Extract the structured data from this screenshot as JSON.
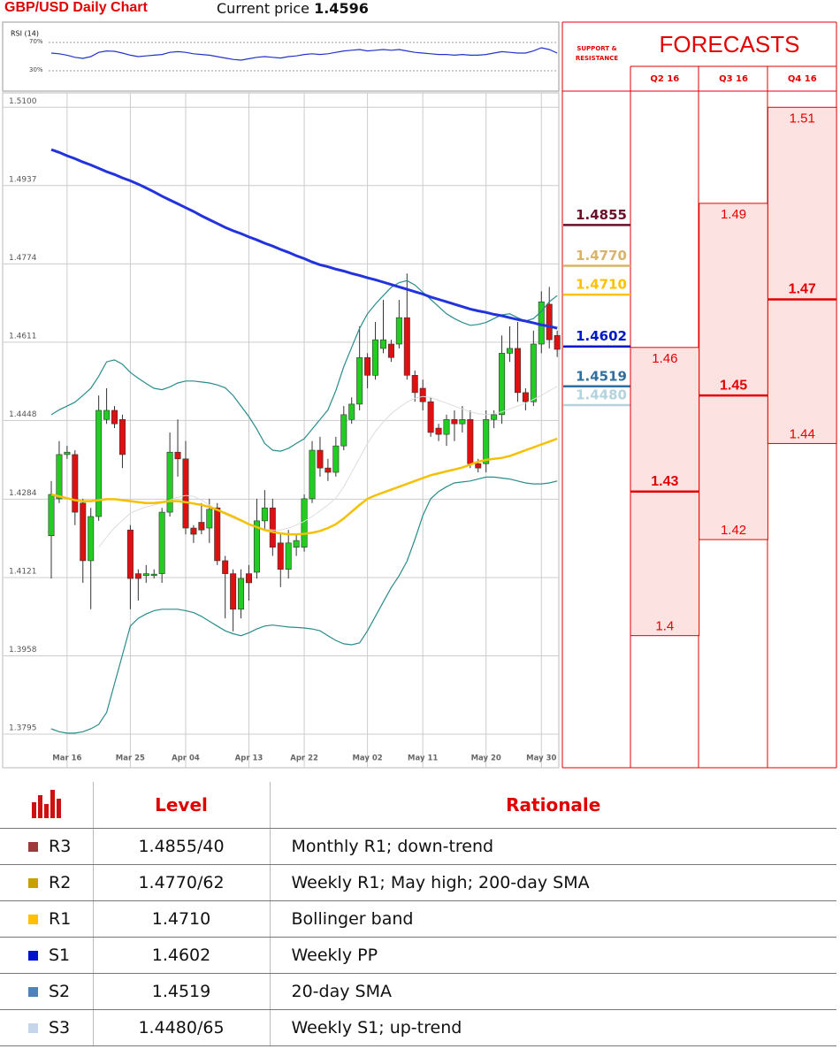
{
  "header": {
    "title": "GBP/USD Daily Chart",
    "price_label": "Current price",
    "price": 1.4596
  },
  "chart_data": [
    {
      "type": "candlestick",
      "categories": [
        null,
        null,
        "Mar 16",
        null,
        null,
        null,
        null,
        null,
        null,
        null,
        "Mar 25",
        null,
        null,
        null,
        null,
        null,
        null,
        "Apr 04",
        null,
        null,
        null,
        null,
        null,
        null,
        null,
        "Apr 13",
        null,
        null,
        null,
        null,
        null,
        null,
        "Apr 22",
        null,
        null,
        null,
        null,
        null,
        null,
        null,
        "May 02",
        null,
        null,
        null,
        null,
        null,
        null,
        "May 11",
        null,
        null,
        null,
        null,
        null,
        null,
        null,
        "May 20",
        null,
        null,
        null,
        null,
        null,
        null,
        "May 30",
        null,
        null
      ],
      "open": [
        1.4208,
        1.4285,
        1.4377,
        1.4377,
        1.4276,
        1.4156,
        1.4248,
        1.445,
        1.4469,
        1.445,
        1.422,
        1.4129,
        1.4125,
        1.4125,
        1.4129,
        1.4257,
        1.4382,
        1.4368,
        1.4224,
        1.4236,
        1.4224,
        1.4266,
        1.4156,
        1.4129,
        1.4055,
        1.4129,
        1.4132,
        1.4239,
        1.4266,
        1.4193,
        1.4138,
        1.4184,
        1.4184,
        1.4285,
        1.4386,
        1.4349,
        1.434,
        1.4395,
        1.445,
        1.4482,
        1.4579,
        1.4542,
        1.4598,
        1.4607,
        1.4607,
        1.4662,
        1.4542,
        1.4515,
        1.4487,
        1.4432,
        1.4419,
        1.445,
        1.4441,
        1.445,
        1.4358,
        1.4358,
        1.445,
        1.446,
        1.4588,
        1.4598,
        1.4506,
        1.4487,
        1.4607,
        1.469,
        1.4625
      ],
      "high": [
        1.4322,
        1.4405,
        1.4395,
        1.4386,
        1.4285,
        1.4266,
        1.45,
        1.4515,
        1.4478,
        1.446,
        1.423,
        1.4138,
        1.4147,
        1.4138,
        1.4266,
        1.4423,
        1.445,
        1.4405,
        1.423,
        1.4276,
        1.4285,
        1.4276,
        1.4166,
        1.4138,
        1.4138,
        1.4147,
        1.4285,
        1.4303,
        1.4285,
        1.4211,
        1.422,
        1.4211,
        1.4294,
        1.4405,
        1.4414,
        1.4368,
        1.4414,
        1.4478,
        1.4496,
        1.4644,
        1.4588,
        1.4653,
        1.4699,
        1.4616,
        1.4699,
        1.4754,
        1.4552,
        1.4533,
        1.4496,
        1.4441,
        1.446,
        1.4469,
        1.4478,
        1.4469,
        1.4368,
        1.4469,
        1.4469,
        1.4625,
        1.4644,
        1.4653,
        1.4515,
        1.4635,
        1.4717,
        1.4726,
        1.4635
      ],
      "low": [
        1.4119,
        1.4276,
        1.4368,
        1.423,
        1.411,
        1.4055,
        1.4239,
        1.4441,
        1.4432,
        1.4349,
        1.4055,
        1.4073,
        1.411,
        1.4119,
        1.411,
        1.4248,
        1.4331,
        1.4211,
        1.4193,
        1.4211,
        1.4193,
        1.4147,
        1.4036,
        1.4009,
        1.4036,
        1.4073,
        1.4119,
        1.422,
        1.4166,
        1.4101,
        1.4119,
        1.4166,
        1.4175,
        1.4276,
        1.4331,
        1.4322,
        1.4331,
        1.4386,
        1.4441,
        1.4469,
        1.4515,
        1.4533,
        1.4588,
        1.457,
        1.4598,
        1.4533,
        1.4487,
        1.4469,
        1.4414,
        1.4405,
        1.4395,
        1.4405,
        1.4423,
        1.4349,
        1.434,
        1.434,
        1.4432,
        1.4441,
        1.457,
        1.4487,
        1.4469,
        1.4478,
        1.4588,
        1.4598,
        1.458
      ],
      "close": [
        1.4294,
        1.4377,
        1.4382,
        1.4257,
        1.4156,
        1.4248,
        1.4469,
        1.4469,
        1.4441,
        1.4377,
        1.4119,
        1.4119,
        1.4129,
        1.4128,
        1.4257,
        1.4382,
        1.4368,
        1.4224,
        1.4211,
        1.422,
        1.4263,
        1.4156,
        1.4129,
        1.4055,
        1.4119,
        1.411,
        1.4239,
        1.4266,
        1.4184,
        1.4138,
        1.4193,
        1.4198,
        1.4285,
        1.4386,
        1.4349,
        1.434,
        1.4395,
        1.446,
        1.4482,
        1.4579,
        1.4542,
        1.4616,
        1.4616,
        1.4579,
        1.4662,
        1.4542,
        1.4506,
        1.4487,
        1.4423,
        1.4419,
        1.445,
        1.4441,
        1.445,
        1.4358,
        1.4349,
        1.445,
        1.446,
        1.4588,
        1.4598,
        1.4506,
        1.4487,
        1.4607,
        1.4695,
        1.4616,
        1.4596
      ],
      "up_color": "#22cc22",
      "down_color": "#dd1111",
      "lines": [
        {
          "color": "#dddddd",
          "width": 1,
          "values": [
            null,
            null,
            null,
            null,
            null,
            null,
            1.4184,
            1.4205,
            1.4225,
            1.424,
            1.4255,
            1.4262,
            1.4268,
            1.4272,
            1.4276,
            1.4282,
            1.4288,
            1.4292,
            1.429,
            1.4282,
            1.4272,
            1.4262,
            1.4252,
            1.4244,
            1.4238,
            1.4232,
            1.4226,
            1.4222,
            1.422,
            1.422,
            1.4224,
            1.423,
            1.4238,
            1.4248,
            1.426,
            1.4272,
            1.4286,
            1.431,
            1.434,
            1.437,
            1.44,
            1.4425,
            1.4445,
            1.4462,
            1.4475,
            1.4486,
            1.4494,
            1.4498,
            1.4496,
            1.449,
            1.4484,
            1.4478,
            1.4472,
            1.4466,
            1.4462,
            1.446,
            1.4462,
            1.4466,
            1.4472,
            1.4478,
            1.4484,
            1.4492,
            1.45,
            1.451,
            1.4519
          ]
        },
        {
          "color": "#2a8c8c",
          "width": 1.2,
          "values": [
            1.446,
            1.447,
            1.4478,
            1.4486,
            1.45,
            1.4515,
            1.454,
            1.457,
            1.4574,
            1.4565,
            1.4548,
            1.4536,
            1.4525,
            1.4515,
            1.4512,
            1.4518,
            1.4526,
            1.453,
            1.453,
            1.4528,
            1.4526,
            1.4522,
            1.4516,
            1.45,
            1.4478,
            1.4456,
            1.443,
            1.44,
            1.4386,
            1.4384,
            1.439,
            1.44,
            1.441,
            1.443,
            1.445,
            1.447,
            1.451,
            1.456,
            1.46,
            1.464,
            1.467,
            1.469,
            1.4708,
            1.4725,
            1.4735,
            1.4739,
            1.473,
            1.4715,
            1.47,
            1.4685,
            1.467,
            1.466,
            1.4652,
            1.4646,
            1.4648,
            1.4652,
            1.466,
            1.4668,
            1.467,
            1.4662,
            1.4655,
            1.466,
            1.4675,
            1.4695,
            1.4708
          ]
        },
        {
          "color": "#2a8c8c",
          "width": 1.2,
          "values": [
            1.3806,
            1.38,
            1.3797,
            1.3797,
            1.38,
            1.3806,
            1.3815,
            1.384,
            1.39,
            1.396,
            1.402,
            1.4036,
            1.4045,
            1.4052,
            1.4055,
            1.4055,
            1.4055,
            1.4052,
            1.4048,
            1.404,
            1.403,
            1.402,
            1.401,
            1.4004,
            1.4,
            1.4006,
            1.4014,
            1.402,
            1.4022,
            1.402,
            1.4018,
            1.4017,
            1.4016,
            1.4014,
            1.401,
            1.4,
            1.399,
            1.3983,
            1.3981,
            1.3985,
            1.401,
            1.404,
            1.407,
            1.41,
            1.4125,
            1.4155,
            1.42,
            1.425,
            1.4285,
            1.43,
            1.431,
            1.4318,
            1.432,
            1.4322,
            1.4326,
            1.433,
            1.433,
            1.4328,
            1.4326,
            1.4322,
            1.4318,
            1.4316,
            1.4316,
            1.4318,
            1.4322
          ]
        },
        {
          "color": "#f5c000",
          "width": 2.5,
          "values": [
            1.4294,
            1.429,
            1.4286,
            1.4282,
            1.428,
            1.428,
            1.4282,
            1.4284,
            1.4284,
            1.4282,
            1.428,
            1.4278,
            1.4276,
            1.4276,
            1.4278,
            1.428,
            1.428,
            1.4278,
            1.4275,
            1.4272,
            1.4268,
            1.4262,
            1.4255,
            1.4248,
            1.424,
            1.4232,
            1.4226,
            1.422,
            1.4216,
            1.4213,
            1.4211,
            1.4211,
            1.4212,
            1.4214,
            1.4218,
            1.4224,
            1.4232,
            1.4244,
            1.4258,
            1.4272,
            1.4285,
            1.4292,
            1.4298,
            1.4304,
            1.431,
            1.4316,
            1.4322,
            1.4328,
            1.4334,
            1.4338,
            1.4342,
            1.4346,
            1.435,
            1.4356,
            1.4362,
            1.4366,
            1.4368,
            1.437,
            1.4374,
            1.438,
            1.4386,
            1.4392,
            1.4398,
            1.4404,
            1.441
          ]
        },
        {
          "color": "#2233dd",
          "width": 3,
          "values": [
            1.5012,
            1.5006,
            1.4999,
            1.4993,
            1.4986,
            1.498,
            1.4973,
            1.4966,
            1.496,
            1.4953,
            1.4947,
            1.494,
            1.4932,
            1.4924,
            1.4915,
            1.4907,
            1.4899,
            1.4891,
            1.4883,
            1.4874,
            1.4866,
            1.4858,
            1.485,
            1.4843,
            1.4837,
            1.483,
            1.4824,
            1.4817,
            1.4811,
            1.4804,
            1.4798,
            1.4791,
            1.4785,
            1.4778,
            1.4772,
            1.4768,
            1.4763,
            1.4759,
            1.4754,
            1.475,
            1.4745,
            1.4741,
            1.4736,
            1.4731,
            1.4726,
            1.4721,
            1.4716,
            1.4711,
            1.4705,
            1.47,
            1.4695,
            1.469,
            1.4685,
            1.468,
            1.4676,
            1.4673,
            1.4669,
            1.4666,
            1.4662,
            1.4658,
            1.4655,
            1.4651,
            1.4647,
            1.4644,
            1.464
          ]
        }
      ],
      "ylim": [
        1.3725,
        1.513
      ],
      "yticks": [
        {
          "value": 1.51,
          "label": "1.5100"
        },
        1.4937,
        1.4774,
        1.4611,
        1.4448,
        1.4284,
        1.4121,
        1.3958,
        1.3795
      ],
      "grid": true
    },
    {
      "type": "line",
      "title": "RSI (14)",
      "color": "#2233cc",
      "values": [
        55,
        54,
        52,
        49,
        47.5,
        50,
        56,
        58,
        57.5,
        55,
        52,
        50,
        51,
        52,
        53,
        56,
        57,
        56,
        54,
        53,
        52,
        50,
        48,
        46,
        45,
        47,
        49,
        50,
        49,
        48,
        50,
        51,
        53,
        54,
        53,
        54,
        56,
        58,
        59,
        60,
        58,
        59,
        60,
        59,
        60,
        58,
        56,
        55,
        54,
        53,
        53,
        52,
        53,
        52,
        52,
        53,
        55,
        57,
        56,
        55,
        55,
        58,
        62.5,
        60,
        55
      ],
      "ylim": [
        5,
        95
      ],
      "yticks": [
        {
          "value": 70,
          "label": "70%"
        },
        {
          "value": 30,
          "label": "30%"
        }
      ]
    }
  ],
  "support_resistance": {
    "title": "SUPPORT & RESISTANCE",
    "levels": [
      {
        "value": 1.4855,
        "color": "#6b0f2a"
      },
      {
        "value": 1.477,
        "label": "1.4770",
        "color": "#d9b36a"
      },
      {
        "value": 1.471,
        "label": "1.4710",
        "color": "#ffc000"
      },
      {
        "value": 1.4602,
        "color": "#0018c8"
      },
      {
        "value": 1.4519,
        "color": "#2f6f9f"
      },
      {
        "value": 1.448,
        "label": "1.4480",
        "color": "#b3d3de"
      }
    ]
  },
  "forecasts": {
    "title": "FORECASTS",
    "color": "#e30000",
    "fill": "#fde2e2",
    "quarters": [
      {
        "label": "Q2 16",
        "high": 1.46,
        "mid": 1.43,
        "low": 1.4
      },
      {
        "label": "Q3 16",
        "high": 1.49,
        "mid": 1.45,
        "low": 1.42
      },
      {
        "label": "Q4 16",
        "high": 1.51,
        "mid": 1.47,
        "low": 1.44
      }
    ]
  },
  "table": {
    "header": [
      "Level",
      "Rationale"
    ],
    "rows": [
      {
        "swatch": "#a0393a",
        "cells": [
          "R3",
          "1.4855/40",
          "Monthly R1; down-trend"
        ]
      },
      {
        "swatch": "#c9a000",
        "cells": [
          "R2",
          "1.4770/62",
          "Weekly R1; May high; 200-day SMA"
        ]
      },
      {
        "swatch": "#ffc000",
        "cells": [
          "R1",
          "1.4710",
          "Bollinger band"
        ]
      },
      {
        "swatch": "#0010d0",
        "cells": [
          "S1",
          "1.4602",
          "Weekly PP"
        ]
      },
      {
        "swatch": "#4f81bd",
        "cells": [
          "S2",
          "1.4519",
          "20-day SMA"
        ]
      },
      {
        "swatch": "#c5d5ea",
        "cells": [
          "S3",
          "1.4480/65",
          "Weekly S1; up-trend"
        ]
      }
    ]
  }
}
